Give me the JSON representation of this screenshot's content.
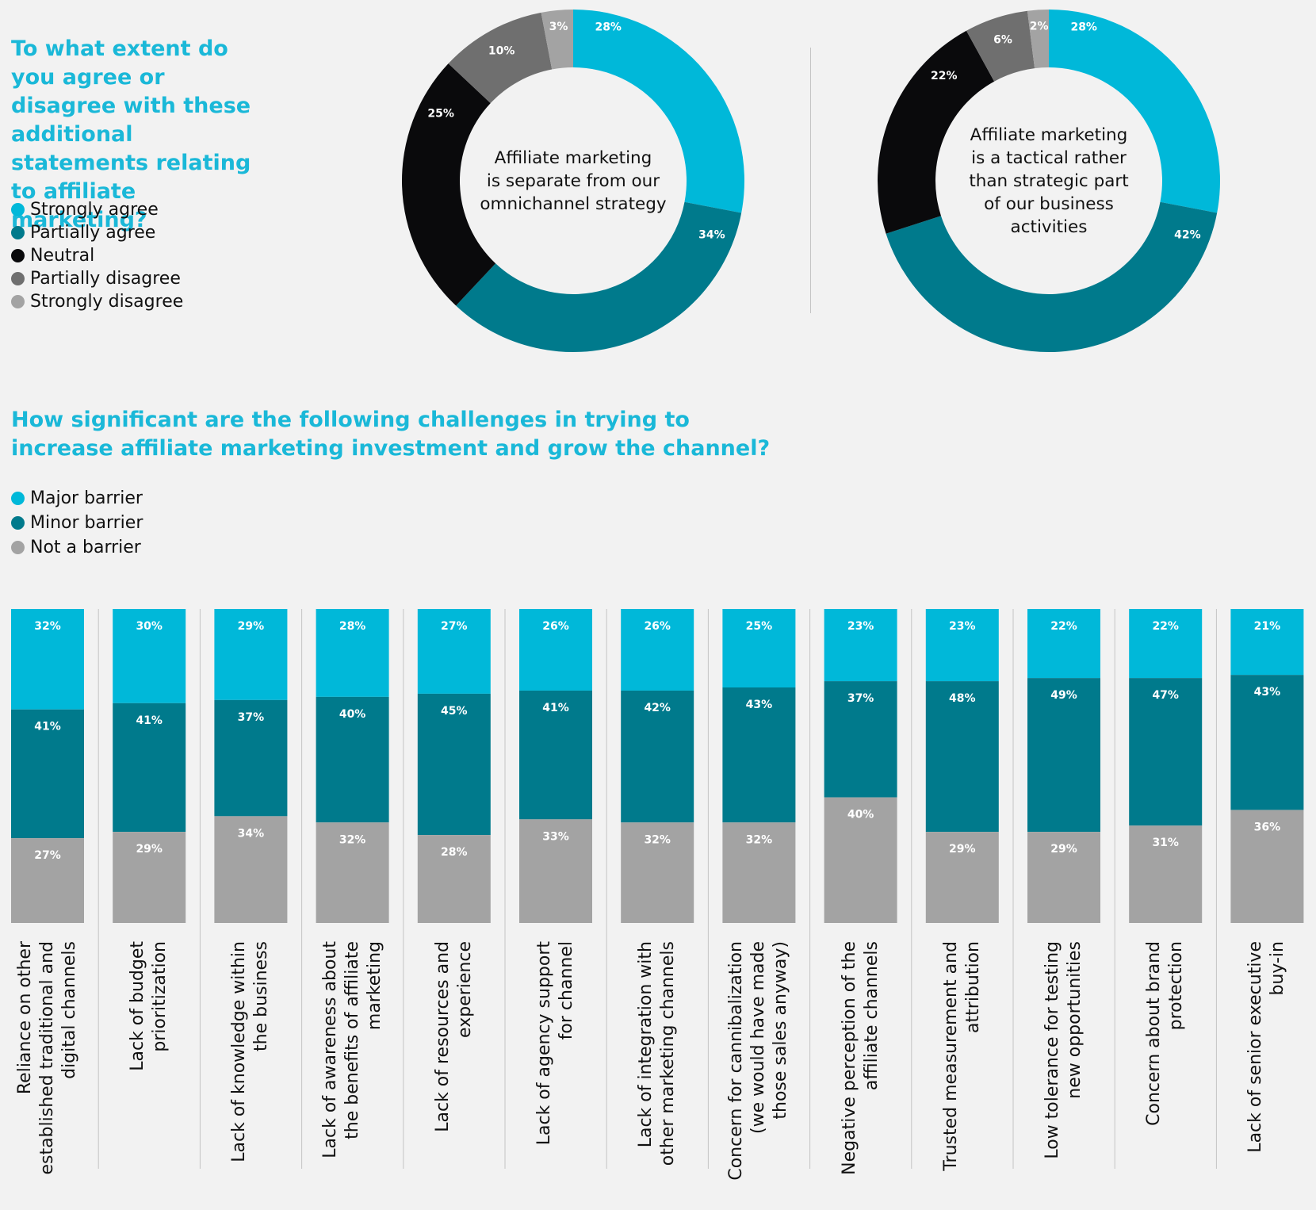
{
  "donut_section": {
    "title": "To what extent do you agree or disagree with these additional statements relating to affiliate marketing?",
    "legend": [
      {
        "label": "Strongly agree",
        "color": "#00b8d9"
      },
      {
        "label": "Partially agree",
        "color": "#007a8c"
      },
      {
        "label": "Neutral",
        "color": "#0a0a0c"
      },
      {
        "label": "Partially disagree",
        "color": "#6f6f6f"
      },
      {
        "label": "Strongly disagree",
        "color": "#a3a3a3"
      }
    ]
  },
  "bar_section": {
    "title": "How significant are the following challenges in trying to increase affiliate marketing investment and grow the channel?",
    "legend": [
      {
        "label": "Major barrier",
        "color": "#00b8d9"
      },
      {
        "label": "Minor barrier",
        "color": "#007a8c"
      },
      {
        "label": "Not a barrier",
        "color": "#a3a3a3"
      }
    ]
  },
  "chart_data": [
    {
      "type": "pie",
      "subtype": "donut",
      "center_text": "Affiliate marketing\nis separate from our\nomnichannel strategy",
      "labels": [
        "Strongly agree",
        "Partially agree",
        "Neutral",
        "Partially disagree",
        "Strongly disagree"
      ],
      "values": [
        28,
        34,
        25,
        10,
        3
      ],
      "value_labels": [
        "28%",
        "34%",
        "25%",
        "10%",
        "3%"
      ],
      "colors": [
        "#00b8d9",
        "#007a8c",
        "#0a0a0c",
        "#6f6f6f",
        "#a3a3a3"
      ]
    },
    {
      "type": "pie",
      "subtype": "donut",
      "center_text": "Affiliate marketing\nis a tactical rather\nthan strategic part\nof our business\nactivities",
      "labels": [
        "Strongly agree",
        "Partially agree",
        "Neutral",
        "Partially disagree",
        "Strongly disagree"
      ],
      "values": [
        28,
        42,
        22,
        6,
        2
      ],
      "value_labels": [
        "28%",
        "42%",
        "22%",
        "6%",
        "2%"
      ],
      "colors": [
        "#00b8d9",
        "#007a8c",
        "#0a0a0c",
        "#6f6f6f",
        "#a3a3a3"
      ]
    },
    {
      "type": "bar",
      "subtype": "stacked-100",
      "categories": [
        "Reliance on other\nestablished traditional and\ndigital channels",
        "Lack of budget\nprioritization",
        "Lack of knowledge within\nthe business",
        "Lack of awareness about\nthe benefits of affiliate\nmarketing",
        "Lack of resources and\nexperience",
        "Lack of agency support\nfor channel",
        "Lack of integration with\nother marketing channels",
        "Concern for cannibalization\n(we would have made\nthose sales anyway)",
        "Negative perception of the\naffiliate channels",
        "Trusted measurement and\nattribution",
        "Low tolerance for testing\nnew opportunities",
        "Concern about brand\nprotection",
        "Lack of senior executive\nbuy-in"
      ],
      "series": [
        {
          "name": "Major barrier",
          "color": "#00b8d9",
          "values": [
            32,
            30,
            29,
            28,
            27,
            26,
            26,
            25,
            23,
            23,
            22,
            22,
            21
          ]
        },
        {
          "name": "Minor barrier",
          "color": "#007a8c",
          "values": [
            41,
            41,
            37,
            40,
            45,
            41,
            42,
            43,
            37,
            48,
            49,
            47,
            43
          ]
        },
        {
          "name": "Not a barrier",
          "color": "#a3a3a3",
          "values": [
            27,
            29,
            34,
            32,
            28,
            33,
            32,
            32,
            40,
            29,
            29,
            31,
            36
          ]
        }
      ]
    }
  ]
}
